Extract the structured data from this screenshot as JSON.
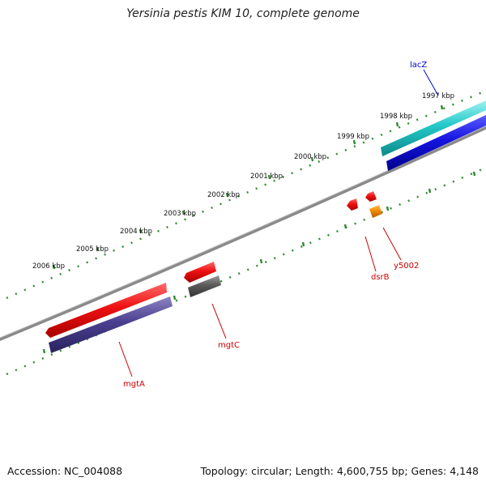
{
  "title": "Yersinia pestis KIM 10, complete genome",
  "footer": {
    "accession": "Accession: NC_004088",
    "summary": "Topology: circular; Length: 4,600,755 bp; Genes: 4,148"
  },
  "scale_labels": [
    "1997 kbp",
    "1998 kbp",
    "1999 kbp",
    "2000 kbp",
    "2001 kbp",
    "2002 kbp",
    "2003 kbp",
    "2004 kbp",
    "2005 kbp",
    "2006 kbp"
  ],
  "genes": [
    {
      "name": "lacZ",
      "color": "#0000cc"
    },
    {
      "name": "dsrB",
      "color": "#cc0000"
    },
    {
      "name": "y5002",
      "color": "#cc0000"
    },
    {
      "name": "mgtC",
      "color": "#cc0000"
    },
    {
      "name": "mgtA",
      "color": "#cc0000"
    }
  ],
  "colors": {
    "backbone": "#8a8a8a",
    "ticks": "#2e8b2e",
    "cyan_feature": "#22c8c8",
    "blue_feature": "#1414e0",
    "red_feature": "#ee1111",
    "orange_feature": "#f08c00",
    "purple_feature": "#4a3f8f",
    "gray_feature": "#5a5a5a"
  }
}
